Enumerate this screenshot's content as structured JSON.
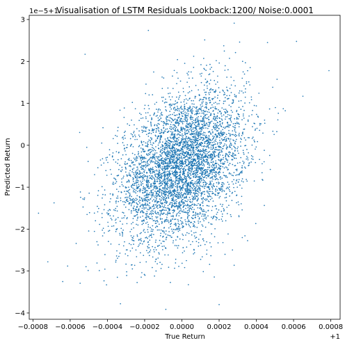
{
  "chart_data": {
    "type": "scatter",
    "title": "Visualisation of LSTM Residuals Lookback:1200/ Noise:0.0001",
    "xlabel": "True Return",
    "ylabel": "Predicted Return",
    "x_offset_label": "+1",
    "y_offset_label": "1e−5+1",
    "xlim": [
      -0.00082,
      0.00085
    ],
    "ylim": [
      -4.15,
      3.1
    ],
    "x_ticks": [
      -0.0008,
      -0.0006,
      -0.0004,
      -0.0002,
      0.0,
      0.0002,
      0.0004,
      0.0006,
      0.0008
    ],
    "x_tick_labels": [
      "−0.0008",
      "−0.0006",
      "−0.0004",
      "−0.0002",
      "0.0000",
      "0.0002",
      "0.0004",
      "0.0006",
      "0.0008"
    ],
    "y_ticks": [
      -4,
      -3,
      -2,
      -1,
      0,
      1,
      2,
      3
    ],
    "y_tick_labels": [
      "−4",
      "−3",
      "−2",
      "−1",
      "0",
      "1",
      "2",
      "3"
    ],
    "grid": false,
    "marker_color": "#1f77b4",
    "n_points": 5000,
    "x_center": 0.0,
    "y_center": -0.5,
    "x_std": 0.00017,
    "y_std": 0.9,
    "correlation": 0.35,
    "outliers": [
      {
        "x": 0.00079,
        "y": 1.78
      },
      {
        "x": -0.00077,
        "y": -1.62
      },
      {
        "x": -0.00064,
        "y": -3.25
      },
      {
        "x": -0.00052,
        "y": 2.17
      },
      {
        "x": 0.00046,
        "y": 2.45
      },
      {
        "x": -0.00018,
        "y": 2.74
      },
      {
        "x": 0.0002,
        "y": -3.8
      },
      {
        "x": -0.00033,
        "y": -3.78
      },
      {
        "x": 0.00065,
        "y": 1.17
      },
      {
        "x": -0.00072,
        "y": -2.78
      }
    ]
  }
}
